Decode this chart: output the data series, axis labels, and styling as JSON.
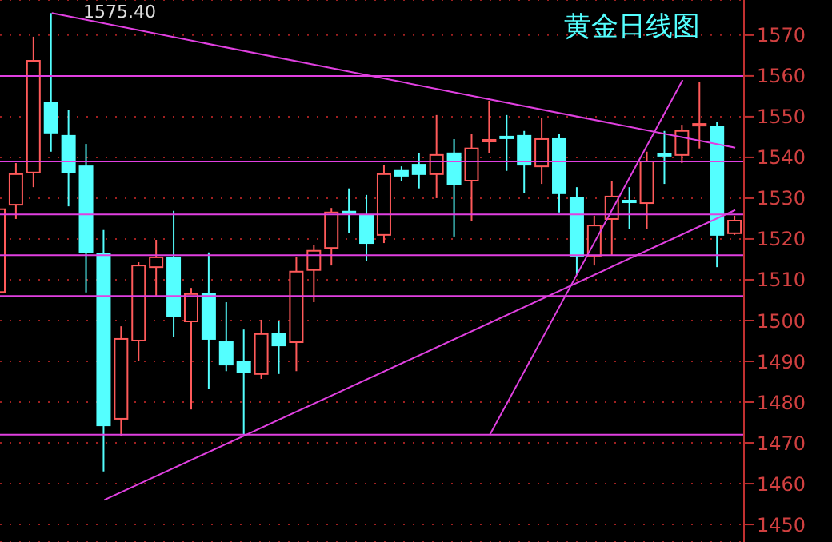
{
  "chart_data": {
    "type": "candlestick",
    "title": "黄金日线图",
    "categories": [
      null,
      null,
      null,
      null,
      null,
      null,
      null,
      null,
      null,
      null,
      null,
      null,
      null,
      null,
      null,
      null,
      null,
      null,
      null,
      null,
      null,
      null,
      null,
      null,
      null,
      null,
      null,
      null,
      null,
      null,
      null,
      null,
      null,
      null,
      null,
      null,
      null,
      null,
      null,
      null,
      null,
      null,
      null
    ],
    "ohlc": [
      [
        1507,
        1528,
        1506,
        1527.3
      ],
      [
        1528.4,
        1538.6,
        1524.9,
        1535.9
      ],
      [
        1536.3,
        1569.6,
        1532.7,
        1563.7
      ],
      [
        1553.5,
        1575.4,
        1541.4,
        1546.1
      ],
      [
        1545.3,
        1551.6,
        1528,
        1536.3
      ],
      [
        1537.8,
        1543.3,
        1506.9,
        1516.7
      ],
      [
        1516.3,
        1522.2,
        1463,
        1474.3
      ],
      [
        1475.9,
        1498.6,
        1471.6,
        1495.5
      ],
      [
        1495.1,
        1514.3,
        1490,
        1513.5
      ],
      [
        1513.1,
        1519.8,
        1506.1,
        1515.5
      ],
      [
        1515.5,
        1526.9,
        1495.9,
        1501
      ],
      [
        1499.8,
        1508,
        1478.2,
        1506.5
      ],
      [
        1506.5,
        1516.7,
        1483.3,
        1495.5
      ],
      [
        1494.7,
        1504.5,
        1487.6,
        1489.2
      ],
      [
        1490,
        1497.8,
        1472,
        1487.3
      ],
      [
        1486.9,
        1500.2,
        1485.7,
        1496.7
      ],
      [
        1496.7,
        1499.8,
        1486.9,
        1493.9
      ],
      [
        1494.7,
        1515.5,
        1487.6,
        1512
      ],
      [
        1512.4,
        1518.6,
        1504.5,
        1517.1
      ],
      [
        1517.8,
        1527.6,
        1513.5,
        1526.5
      ],
      [
        1526.7,
        1532.4,
        1521.4,
        1526.3
      ],
      [
        1525.7,
        1530.8,
        1514.7,
        1519
      ],
      [
        1521,
        1538.2,
        1519,
        1535.9
      ],
      [
        1536.7,
        1537.8,
        1534.3,
        1535.5
      ],
      [
        1538.2,
        1541,
        1532.4,
        1535.9
      ],
      [
        1535.9,
        1550.4,
        1530,
        1540.6
      ],
      [
        1541,
        1544.5,
        1520.6,
        1533.5
      ],
      [
        1534.3,
        1545.7,
        1524.5,
        1542.2
      ],
      [
        1543.9,
        1553.9,
        1541,
        1544.3
      ],
      [
        1545.1,
        1550.4,
        1536.7,
        1544.7
      ],
      [
        1545.3,
        1546.5,
        1531.2,
        1538.2
      ],
      [
        1537.8,
        1549.6,
        1533.5,
        1544.5
      ],
      [
        1544.5,
        1545.7,
        1526.5,
        1531.2
      ],
      [
        1530,
        1532.7,
        1511.2,
        1515.9
      ],
      [
        1515.9,
        1525.7,
        1513.5,
        1523.3
      ],
      [
        1524.9,
        1534.3,
        1515.9,
        1530.4
      ],
      [
        1529.4,
        1532.7,
        1522.5,
        1529
      ],
      [
        1528.8,
        1541.4,
        1522.5,
        1539
      ],
      [
        1540.8,
        1546.5,
        1533.5,
        1540.4
      ],
      [
        1540.6,
        1548,
        1538.6,
        1546.5
      ],
      [
        1547.8,
        1558.6,
        1542.2,
        1548.2
      ],
      [
        1547.6,
        1548.8,
        1513.1,
        1521
      ],
      [
        1521.4,
        1525.7,
        1521,
        1524.5
      ]
    ],
    "colors": [
      "#ff5a5a",
      "#ff5a5a",
      "#ff5a5a",
      "#54ffff",
      "#54ffff",
      "#54ffff",
      "#54ffff",
      "#ff5a5a",
      "#ff5a5a",
      "#ff5a5a",
      "#54ffff",
      "#ff5a5a",
      "#54ffff",
      "#54ffff",
      "#54ffff",
      "#ff5a5a",
      "#54ffff",
      "#ff5a5a",
      "#ff5a5a",
      "#ff5a5a",
      "#54ffff",
      "#54ffff",
      "#ff5a5a",
      "#54ffff",
      "#54ffff",
      "#ff5a5a",
      "#54ffff",
      "#ff5a5a",
      "#ff5a5a",
      "#54ffff",
      "#54ffff",
      "#ff5a5a",
      "#54ffff",
      "#54ffff",
      "#ff5a5a",
      "#ff5a5a",
      "#54ffff",
      "#ff5a5a",
      "#54ffff",
      "#ff5a5a",
      "#ff5a5a",
      "#54ffff",
      "#ff5a5a"
    ],
    "series": [
      {
        "type": "line",
        "color": "#e040e0",
        "values": [
          null,
          null,
          null,
          1575.4,
          null,
          null,
          null,
          null,
          null,
          null,
          null,
          null,
          null,
          null,
          null,
          null,
          null,
          null,
          null,
          null,
          null,
          null,
          null,
          null,
          null,
          null,
          null,
          null,
          null,
          null,
          null,
          null,
          null,
          null,
          null,
          null,
          null,
          null,
          null,
          null,
          null,
          null,
          1542.4
        ]
      },
      {
        "type": "line",
        "color": "#e040e0",
        "values": [
          null,
          null,
          null,
          null,
          null,
          null,
          1456,
          null,
          null,
          null,
          null,
          null,
          null,
          null,
          null,
          null,
          null,
          null,
          null,
          null,
          null,
          null,
          null,
          null,
          null,
          null,
          null,
          null,
          null,
          null,
          null,
          null,
          null,
          null,
          null,
          null,
          null,
          null,
          null,
          null,
          null,
          null,
          1527.1
        ]
      },
      {
        "type": "line",
        "color": "#e040e0",
        "values": [
          null,
          null,
          null,
          null,
          null,
          null,
          null,
          null,
          null,
          null,
          null,
          null,
          null,
          null,
          null,
          null,
          null,
          null,
          null,
          null,
          null,
          null,
          null,
          null,
          null,
          null,
          null,
          null,
          1472,
          null,
          null,
          null,
          null,
          null,
          null,
          null,
          null,
          null,
          null,
          1559,
          null,
          null,
          null
        ]
      }
    ],
    "ref_lines": [
      {
        "axis": "y",
        "value": 1560,
        "color": "#e040e0"
      },
      {
        "axis": "y",
        "value": 1539,
        "color": "#e040e0"
      },
      {
        "axis": "y",
        "value": 1526,
        "color": "#e040e0"
      },
      {
        "axis": "y",
        "value": 1516,
        "color": "#e040e0"
      },
      {
        "axis": "y",
        "value": 1506,
        "color": "#e040e0"
      },
      {
        "axis": "y",
        "value": 1472,
        "color": "#e040e0"
      }
    ],
    "annotations": [
      "1575.40"
    ],
    "ylim": [
      1445.7,
      1578.6
    ],
    "yticks": [
      1450,
      1460,
      1470,
      1480,
      1490,
      1500,
      1510,
      1520,
      1530,
      1540,
      1550,
      1560,
      1570
    ],
    "grid": "y",
    "tick_labels": "y"
  }
}
